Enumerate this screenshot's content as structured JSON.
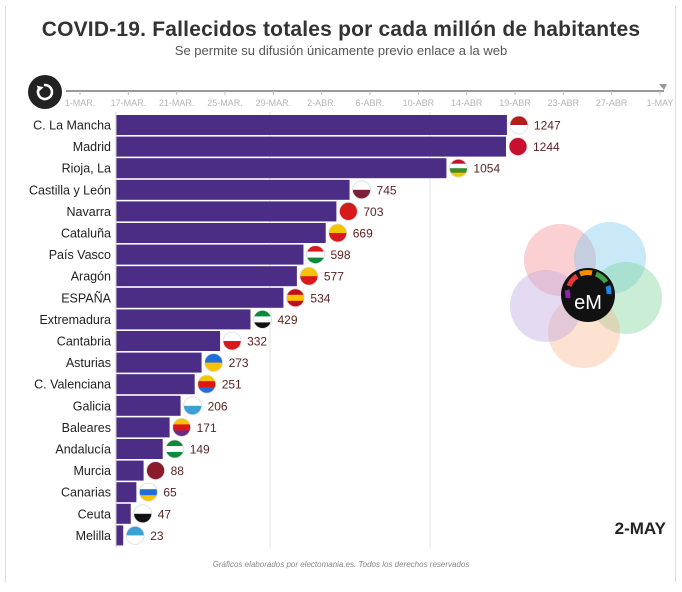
{
  "header": {
    "title": "COVID-19. Fallecidos totales por cada millón de habitantes",
    "subtitle": "Se permite su difusión únicamente previo enlace a la web"
  },
  "controls": {
    "replay_icon": "replay-icon"
  },
  "timeline": {
    "ticks": [
      "1-MAR.",
      "17-MAR.",
      "21-MAR.",
      "25-MAR.",
      "29-MAR.",
      "2-ABR.",
      "6-ABR.",
      "10-ABR",
      "14-ABR",
      "19-ABR",
      "23-ABR",
      "27-ABR",
      "1-MAY"
    ],
    "current": "2-MAY"
  },
  "chart_data": {
    "type": "bar",
    "orientation": "horizontal",
    "categories": [
      "C. La Mancha",
      "Madrid",
      "Rioja, La",
      "Castilla y León",
      "Navarra",
      "Cataluña",
      "País Vasco",
      "Aragón",
      "ESPAÑA",
      "Extremadura",
      "Cantabria",
      "Asturias",
      "C. Valenciana",
      "Galicia",
      "Baleares",
      "Andalucía",
      "Murcia",
      "Canarias",
      "Ceuta",
      "Melilla"
    ],
    "values": [
      1247,
      1244,
      1054,
      745,
      703,
      669,
      598,
      577,
      534,
      429,
      332,
      273,
      251,
      206,
      171,
      149,
      88,
      65,
      47,
      23
    ],
    "xlim": [
      0,
      1300
    ],
    "bar_color": "#4b2d86",
    "value_label_color": "#5a1f1f"
  },
  "flags": [
    {
      "colors": [
        "#b71c1c",
        "#ffffff"
      ]
    },
    {
      "colors": [
        "#c8102e",
        "#c8102e"
      ]
    },
    {
      "colors": [
        "#c8102e",
        "#ffffff",
        "#3a8d2f",
        "#f4c400"
      ]
    },
    {
      "colors": [
        "#ffffff",
        "#7b1f3a"
      ]
    },
    {
      "colors": [
        "#d7191c",
        "#d7191c"
      ]
    },
    {
      "colors": [
        "#f5c400",
        "#d7191c"
      ]
    },
    {
      "colors": [
        "#d7191c",
        "#ffffff",
        "#0b8a3b"
      ]
    },
    {
      "colors": [
        "#f5c400",
        "#d7191c"
      ]
    },
    {
      "colors": [
        "#c60b1e",
        "#ffc400",
        "#c60b1e"
      ]
    },
    {
      "colors": [
        "#0b8a3b",
        "#ffffff",
        "#111111"
      ]
    },
    {
      "colors": [
        "#ffffff",
        "#d7191c"
      ]
    },
    {
      "colors": [
        "#1e6fd9",
        "#f5c400"
      ]
    },
    {
      "colors": [
        "#f5c400",
        "#d7191c",
        "#1e6fd9"
      ]
    },
    {
      "colors": [
        "#ffffff",
        "#3aa1d8"
      ]
    },
    {
      "colors": [
        "#f5c400",
        "#d7191c",
        "#6a2b85"
      ]
    },
    {
      "colors": [
        "#0b8a3b",
        "#ffffff",
        "#0b8a3b"
      ]
    },
    {
      "colors": [
        "#8b1a2b",
        "#8b1a2b"
      ]
    },
    {
      "colors": [
        "#ffffff",
        "#1e6fd9",
        "#f5c400"
      ]
    },
    {
      "colors": [
        "#ffffff",
        "#111111"
      ]
    },
    {
      "colors": [
        "#3aa1d8",
        "#ffffff"
      ]
    }
  ],
  "logo": {
    "text": "eM"
  },
  "footer": {
    "credit": "Gráficos elaborados por electomania.es. Todos los derechos reservados"
  }
}
